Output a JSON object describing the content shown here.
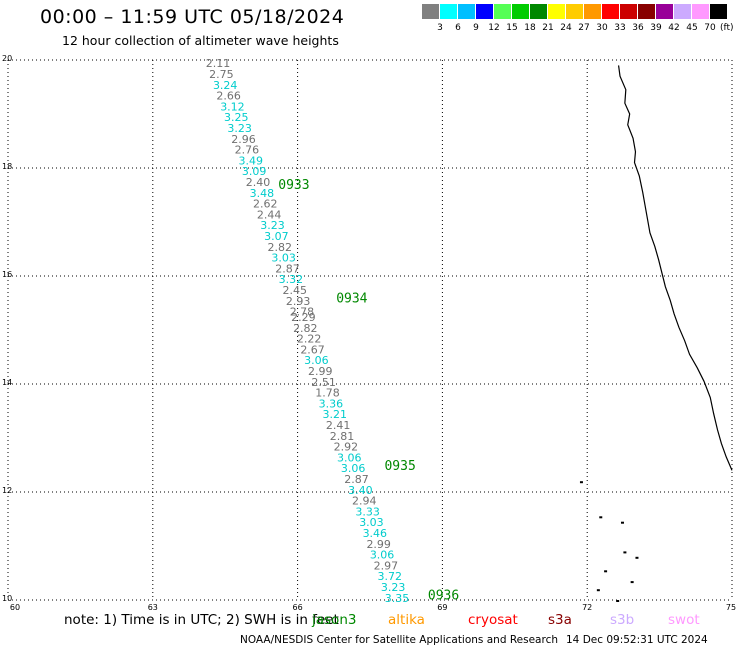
{
  "title": "00:00 – 11:59 UTC 05/18/2024",
  "subtitle": "12 hour collection of altimeter wave heights",
  "scale": {
    "colors": [
      "#808080",
      "#00ffff",
      "#00bfff",
      "#0000ff",
      "#55ff55",
      "#00cc00",
      "#008800",
      "#ffff00",
      "#ffcc00",
      "#ff9900",
      "#ff0000",
      "#cc0000",
      "#880000",
      "#990099",
      "#ccaaff",
      "#ff99ff",
      "#000000"
    ],
    "labels": [
      "3",
      "6",
      "9",
      "12",
      "15",
      "18",
      "21",
      "24",
      "27",
      "30",
      "33",
      "36",
      "39",
      "42",
      "45",
      "70"
    ],
    "unit": "(ft)"
  },
  "map": {
    "lon_range": [
      60,
      75
    ],
    "lat_range": [
      10,
      20
    ],
    "lon_labels": [
      "60",
      "63",
      "66",
      "69",
      "72",
      "75"
    ],
    "lat_labels": [
      "20",
      "18",
      "16",
      "14",
      "12",
      "10"
    ],
    "grid": true
  },
  "track": {
    "label_color": "#008800",
    "times": [
      {
        "text": "0933",
        "lon": 65.6,
        "lat": 17.7
      },
      {
        "text": "0934",
        "lon": 66.8,
        "lat": 15.6
      },
      {
        "text": "0935",
        "lon": 67.8,
        "lat": 12.5
      },
      {
        "text": "0936",
        "lon": 68.7,
        "lat": 10.1
      }
    ],
    "points": [
      {
        "v": "2.11",
        "lon": 64.35,
        "lat": 19.94
      },
      {
        "v": "2.75",
        "lon": 64.42,
        "lat": 19.74
      },
      {
        "v": "3.24",
        "lon": 64.5,
        "lat": 19.54
      },
      {
        "v": "2.66",
        "lon": 64.57,
        "lat": 19.34
      },
      {
        "v": "3.12",
        "lon": 64.65,
        "lat": 19.14
      },
      {
        "v": "3.25",
        "lon": 64.73,
        "lat": 18.94
      },
      {
        "v": "3.23",
        "lon": 64.8,
        "lat": 18.74
      },
      {
        "v": "2.96",
        "lon": 64.88,
        "lat": 18.54
      },
      {
        "v": "2.76",
        "lon": 64.95,
        "lat": 18.34
      },
      {
        "v": "3.49",
        "lon": 65.03,
        "lat": 18.14
      },
      {
        "v": "3.09",
        "lon": 65.1,
        "lat": 17.94
      },
      {
        "v": "2.40",
        "lon": 65.18,
        "lat": 17.74
      },
      {
        "v": "3.48",
        "lon": 65.26,
        "lat": 17.54
      },
      {
        "v": "2.62",
        "lon": 65.33,
        "lat": 17.34
      },
      {
        "v": "2.44",
        "lon": 65.41,
        "lat": 17.14
      },
      {
        "v": "3.23",
        "lon": 65.48,
        "lat": 16.94
      },
      {
        "v": "3.07",
        "lon": 65.56,
        "lat": 16.74
      },
      {
        "v": "2.82",
        "lon": 65.63,
        "lat": 16.54
      },
      {
        "v": "3.03",
        "lon": 65.71,
        "lat": 16.34
      },
      {
        "v": "2.87",
        "lon": 65.79,
        "lat": 16.14
      },
      {
        "v": "3.32",
        "lon": 65.86,
        "lat": 15.94
      },
      {
        "v": "2.45",
        "lon": 65.94,
        "lat": 15.74
      },
      {
        "v": "2.93",
        "lon": 66.01,
        "lat": 15.54
      },
      {
        "v": "2.78",
        "lon": 66.09,
        "lat": 15.34
      },
      {
        "v": "2.29",
        "lon": 66.12,
        "lat": 15.24
      },
      {
        "v": "2.82",
        "lon": 66.16,
        "lat": 15.04
      },
      {
        "v": "2.22",
        "lon": 66.24,
        "lat": 14.84
      },
      {
        "v": "2.67",
        "lon": 66.31,
        "lat": 14.64
      },
      {
        "v": "3.06",
        "lon": 66.39,
        "lat": 14.44
      },
      {
        "v": "2.99",
        "lon": 66.47,
        "lat": 14.24
      },
      {
        "v": "2.51",
        "lon": 66.54,
        "lat": 14.04
      },
      {
        "v": "1.78",
        "lon": 66.62,
        "lat": 13.84
      },
      {
        "v": "3.36",
        "lon": 66.69,
        "lat": 13.64
      },
      {
        "v": "3.21",
        "lon": 66.77,
        "lat": 13.44
      },
      {
        "v": "2.41",
        "lon": 66.84,
        "lat": 13.24
      },
      {
        "v": "2.81",
        "lon": 66.92,
        "lat": 13.04
      },
      {
        "v": "2.92",
        "lon": 67.0,
        "lat": 12.84
      },
      {
        "v": "3.06",
        "lon": 67.07,
        "lat": 12.64
      },
      {
        "v": "3.06",
        "lon": 67.15,
        "lat": 12.44
      },
      {
        "v": "2.87",
        "lon": 67.22,
        "lat": 12.24
      },
      {
        "v": "3.40",
        "lon": 67.3,
        "lat": 12.04
      },
      {
        "v": "2.94",
        "lon": 67.38,
        "lat": 11.84
      },
      {
        "v": "3.33",
        "lon": 67.45,
        "lat": 11.64
      },
      {
        "v": "3.03",
        "lon": 67.53,
        "lat": 11.44
      },
      {
        "v": "3.46",
        "lon": 67.6,
        "lat": 11.24
      },
      {
        "v": "2.99",
        "lon": 67.68,
        "lat": 11.04
      },
      {
        "v": "3.06",
        "lon": 67.75,
        "lat": 10.84
      },
      {
        "v": "2.97",
        "lon": 67.83,
        "lat": 10.64
      },
      {
        "v": "3.72",
        "lon": 67.91,
        "lat": 10.44
      },
      {
        "v": "3.23",
        "lon": 67.98,
        "lat": 10.24
      },
      {
        "v": "3.35",
        "lon": 68.06,
        "lat": 10.04
      }
    ]
  },
  "coastline": [
    [
      72.65,
      19.9
    ],
    [
      72.68,
      19.7
    ],
    [
      72.8,
      19.45
    ],
    [
      72.78,
      19.2
    ],
    [
      72.88,
      19.0
    ],
    [
      72.84,
      18.8
    ],
    [
      72.95,
      18.55
    ],
    [
      73.0,
      18.3
    ],
    [
      72.98,
      18.1
    ],
    [
      73.08,
      17.85
    ],
    [
      73.15,
      17.55
    ],
    [
      73.2,
      17.3
    ],
    [
      73.25,
      17.05
    ],
    [
      73.3,
      16.8
    ],
    [
      73.4,
      16.55
    ],
    [
      73.48,
      16.3
    ],
    [
      73.55,
      16.05
    ],
    [
      73.62,
      15.8
    ],
    [
      73.72,
      15.55
    ],
    [
      73.8,
      15.3
    ],
    [
      73.9,
      15.05
    ],
    [
      74.02,
      14.8
    ],
    [
      74.12,
      14.55
    ],
    [
      74.28,
      14.3
    ],
    [
      74.42,
      14.05
    ],
    [
      74.55,
      13.75
    ],
    [
      74.62,
      13.45
    ],
    [
      74.7,
      13.15
    ],
    [
      74.78,
      12.9
    ],
    [
      74.88,
      12.65
    ],
    [
      75.0,
      12.4
    ]
  ],
  "islands": [
    [
      71.85,
      12.2
    ],
    [
      72.25,
      11.55
    ],
    [
      72.7,
      11.45
    ],
    [
      73.0,
      10.8
    ],
    [
      72.75,
      10.9
    ],
    [
      72.2,
      10.2
    ],
    [
      72.35,
      10.55
    ],
    [
      72.6,
      10.0
    ],
    [
      72.9,
      10.35
    ]
  ],
  "note": {
    "text": "note: 1) Time is in UTC; 2) SWH is in feet"
  },
  "satellites": [
    {
      "name": "jason3",
      "color": "#008800"
    },
    {
      "name": "altika",
      "color": "#ff9900"
    },
    {
      "name": "cryosat",
      "color": "#ff0000"
    },
    {
      "name": "s3a",
      "color": "#880000"
    },
    {
      "name": "s3b",
      "color": "#ccaaff"
    },
    {
      "name": "swot",
      "color": "#ff99ff"
    }
  ],
  "credit": "NOAA/NESDIS Center for Satellite Applications and Research",
  "stamp": "14 Dec 09:52:31 UTC 2024"
}
